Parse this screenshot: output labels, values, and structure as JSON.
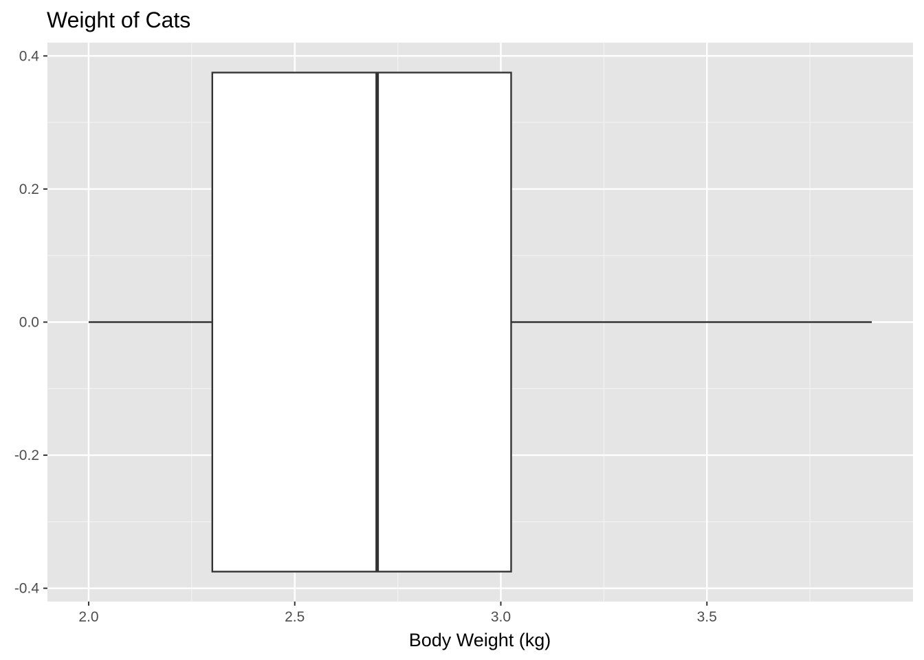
{
  "chart_data": {
    "type": "boxplot",
    "title": "Weight of Cats",
    "xlabel": "Body Weight (kg)",
    "ylabel": "",
    "xlim": [
      1.9,
      4.0
    ],
    "ylim": [
      -0.42,
      0.42
    ],
    "x_ticks": [
      2.0,
      2.5,
      3.0,
      3.5
    ],
    "x_tick_labels": [
      "2.0",
      "2.5",
      "3.0",
      "3.5"
    ],
    "y_ticks": [
      -0.4,
      -0.2,
      0.0,
      0.2,
      0.4
    ],
    "y_tick_labels": [
      "-0.4",
      "-0.2",
      "0.0",
      "0.2",
      "0.4"
    ],
    "x_minor_ticks": [
      2.25,
      2.75,
      3.25,
      3.75
    ],
    "y_minor_ticks": [
      -0.3,
      -0.1,
      0.1,
      0.3
    ],
    "grid": true,
    "box": {
      "min": 2.0,
      "q1": 2.3,
      "median": 2.7,
      "q3": 3.025,
      "max": 3.9,
      "y_center": 0.0,
      "y_halfwidth": 0.375
    },
    "colors": {
      "panel_background": "#e5e5e5",
      "grid_major": "#ffffff",
      "grid_minor": "#f2f2f2",
      "box_fill": "#ffffff",
      "box_stroke": "#333333",
      "tick_text": "#4d4d4d",
      "tick_mark": "#333333"
    }
  }
}
